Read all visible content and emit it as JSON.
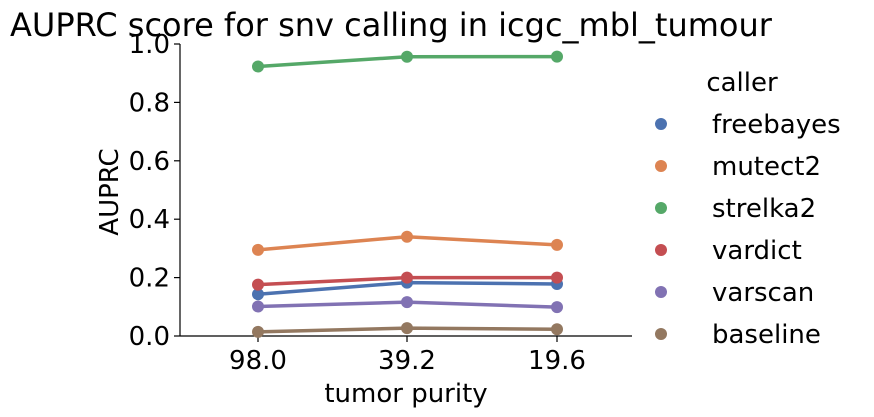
{
  "chart_data": {
    "type": "line",
    "title": "AUPRC score for snv calling in icgc_mbl_tumour",
    "xlabel": "tumor purity",
    "ylabel": "AUPRC",
    "categories": [
      "98.0",
      "39.2",
      "19.6"
    ],
    "ylim": [
      0.0,
      1.0
    ],
    "yticks": [
      "0.0",
      "0.2",
      "0.4",
      "0.6",
      "0.8",
      "1.0"
    ],
    "grid": false,
    "legend": {
      "title": "caller",
      "placement": "right"
    },
    "series": [
      {
        "name": "freebayes",
        "color": "#4c72b0",
        "values": [
          0.143,
          0.183,
          0.178
        ]
      },
      {
        "name": "mutect2",
        "color": "#dd8452",
        "values": [
          0.295,
          0.34,
          0.312
        ]
      },
      {
        "name": "strelka2",
        "color": "#55a868",
        "values": [
          0.923,
          0.956,
          0.957
        ]
      },
      {
        "name": "vardict",
        "color": "#c44e52",
        "values": [
          0.176,
          0.2,
          0.2
        ]
      },
      {
        "name": "varscan",
        "color": "#8172b3",
        "values": [
          0.101,
          0.116,
          0.099
        ]
      },
      {
        "name": "baseline",
        "color": "#937860",
        "values": [
          0.014,
          0.027,
          0.023
        ]
      }
    ]
  }
}
